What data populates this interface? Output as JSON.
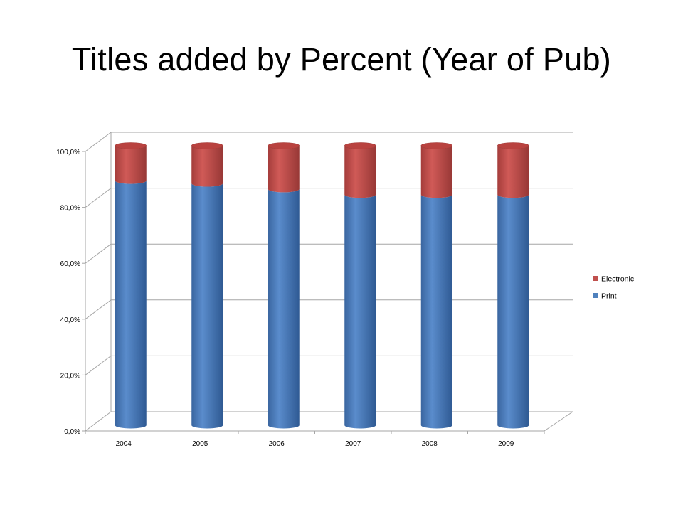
{
  "slide": {
    "title": "Titles added by Percent (Year of Pub)"
  },
  "chart_data": {
    "type": "bar",
    "stacked": true,
    "percent": true,
    "three_d": true,
    "categories": [
      "2004",
      "2005",
      "2006",
      "2007",
      "2008",
      "2009"
    ],
    "series": [
      {
        "name": "Print",
        "values": [
          87.5,
          86.5,
          84.5,
          82.5,
          82.5,
          82.5
        ],
        "color": "#4F81BD"
      },
      {
        "name": "Electronic",
        "values": [
          12.5,
          13.5,
          15.5,
          17.5,
          17.5,
          17.5
        ],
        "color": "#C0504D"
      }
    ],
    "ylim": [
      0,
      100
    ],
    "yticks": [
      "0,0%",
      "20,0%",
      "40,0%",
      "60,0%",
      "80,0%",
      "100,0%"
    ],
    "grid": true,
    "legend": {
      "position": "right",
      "order": [
        "Electronic",
        "Print"
      ]
    }
  }
}
